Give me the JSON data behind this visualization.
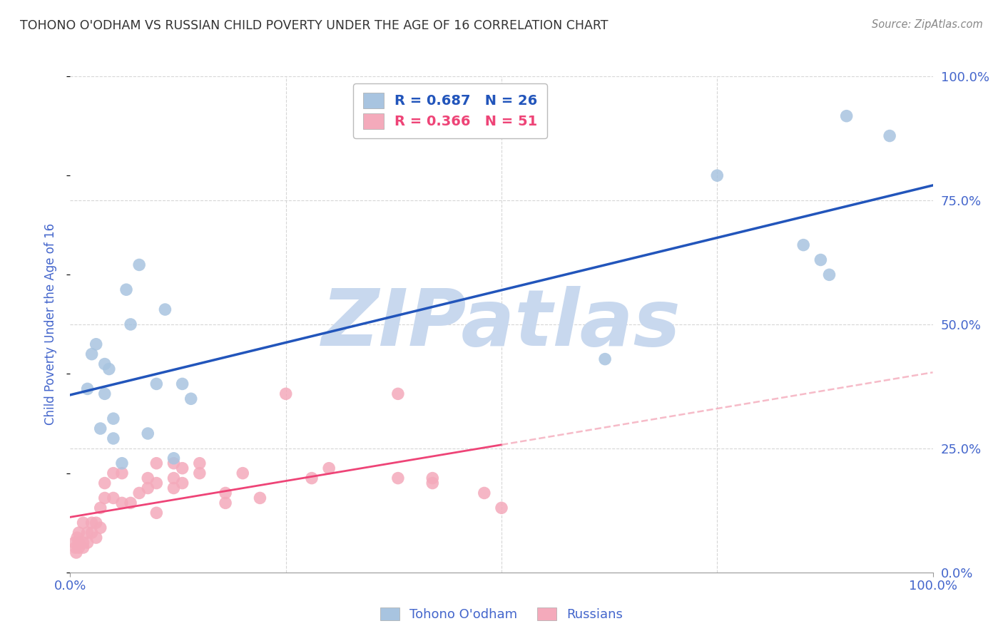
{
  "title": "TOHONO O'ODHAM VS RUSSIAN CHILD POVERTY UNDER THE AGE OF 16 CORRELATION CHART",
  "source": "Source: ZipAtlas.com",
  "ylabel": "Child Poverty Under the Age of 16",
  "xlim": [
    0,
    1
  ],
  "ylim": [
    0,
    1
  ],
  "ytick_labels_right": [
    "0.0%",
    "25.0%",
    "50.0%",
    "75.0%",
    "100.0%"
  ],
  "ytick_positions_right": [
    0.0,
    0.25,
    0.5,
    0.75,
    1.0
  ],
  "legend1_r": "0.687",
  "legend1_n": "26",
  "legend2_r": "0.366",
  "legend2_n": "51",
  "blue_color": "#A8C4E0",
  "pink_color": "#F4AABB",
  "line_blue": "#2255BB",
  "line_pink": "#EE4477",
  "line_pink_dash": "#F4AABB",
  "axis_label_color": "#4466CC",
  "title_color": "#333333",
  "grid_color": "#CCCCCC",
  "watermark_color": "#C8D8EE",
  "tohono_x": [
    0.02,
    0.025,
    0.03,
    0.035,
    0.04,
    0.04,
    0.045,
    0.05,
    0.05,
    0.06,
    0.065,
    0.07,
    0.08,
    0.09,
    0.1,
    0.11,
    0.12,
    0.13,
    0.14,
    0.62,
    0.75,
    0.85,
    0.87,
    0.88,
    0.9,
    0.95
  ],
  "tohono_y": [
    0.37,
    0.44,
    0.46,
    0.29,
    0.36,
    0.42,
    0.41,
    0.27,
    0.31,
    0.22,
    0.57,
    0.5,
    0.62,
    0.28,
    0.38,
    0.53,
    0.23,
    0.38,
    0.35,
    0.43,
    0.8,
    0.66,
    0.63,
    0.6,
    0.92,
    0.88
  ],
  "russian_x": [
    0.005,
    0.006,
    0.007,
    0.008,
    0.01,
    0.01,
    0.01,
    0.015,
    0.015,
    0.015,
    0.02,
    0.02,
    0.025,
    0.025,
    0.03,
    0.03,
    0.035,
    0.035,
    0.04,
    0.04,
    0.05,
    0.05,
    0.06,
    0.06,
    0.07,
    0.08,
    0.09,
    0.09,
    0.1,
    0.1,
    0.1,
    0.12,
    0.12,
    0.12,
    0.13,
    0.13,
    0.15,
    0.15,
    0.18,
    0.18,
    0.2,
    0.22,
    0.25,
    0.28,
    0.3,
    0.38,
    0.38,
    0.42,
    0.42,
    0.48,
    0.5
  ],
  "russian_y": [
    0.06,
    0.05,
    0.04,
    0.07,
    0.05,
    0.06,
    0.08,
    0.05,
    0.06,
    0.1,
    0.06,
    0.08,
    0.08,
    0.1,
    0.07,
    0.1,
    0.09,
    0.13,
    0.15,
    0.18,
    0.15,
    0.2,
    0.14,
    0.2,
    0.14,
    0.16,
    0.17,
    0.19,
    0.12,
    0.18,
    0.22,
    0.17,
    0.19,
    0.22,
    0.18,
    0.21,
    0.2,
    0.22,
    0.14,
    0.16,
    0.2,
    0.15,
    0.36,
    0.19,
    0.21,
    0.19,
    0.36,
    0.19,
    0.18,
    0.16,
    0.13
  ]
}
